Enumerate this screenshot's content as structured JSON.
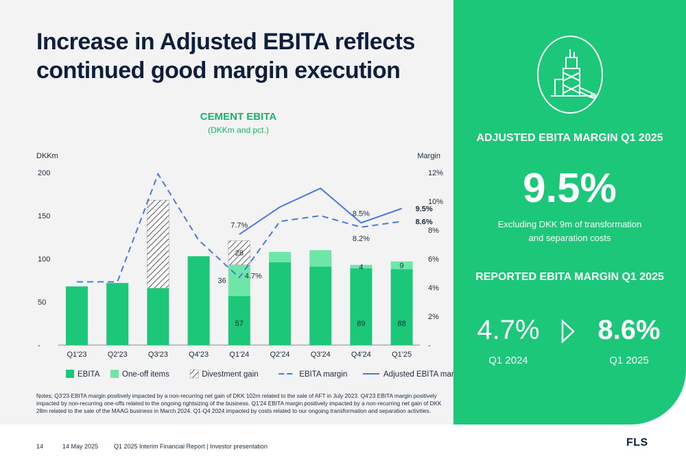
{
  "slide": {
    "title_line1": "Increase in Adjusted EBITA reflects",
    "title_line2": "continued good margin execution"
  },
  "chart_data": {
    "type": "bar",
    "title": "CEMENT EBITA",
    "subtitle": "(DKKm and pct.)",
    "ylabel": "DKKm",
    "y2label": "Margin",
    "ylim": [
      0,
      200
    ],
    "y2lim": [
      0,
      12
    ],
    "yticks": [
      "-",
      "50",
      "100",
      "150",
      "200"
    ],
    "y2ticks": [
      "-",
      "2%",
      "4%",
      "6%",
      "8%",
      "10%",
      "12%"
    ],
    "categories": [
      "Q1'23",
      "Q2'23",
      "Q3'23",
      "Q4'23",
      "Q1'24",
      "Q2'24",
      "Q3'24",
      "Q4'24",
      "Q1'25"
    ],
    "series": [
      {
        "name": "EBITA",
        "kind": "bar",
        "color": "#1dc77a",
        "values": [
          68,
          72,
          66,
          103,
          57,
          96,
          91,
          89,
          88
        ]
      },
      {
        "name": "One-off items",
        "kind": "bar",
        "color": "#6ee6a8",
        "values": [
          0,
          0,
          0,
          0,
          36,
          12,
          19,
          4,
          9
        ]
      },
      {
        "name": "Divestment gain",
        "kind": "bar",
        "pattern": "hatch",
        "values": [
          0,
          0,
          102,
          0,
          28,
          0,
          0,
          0,
          0
        ]
      },
      {
        "name": "EBITA margin",
        "kind": "line",
        "style": "dashed",
        "color": "#4a78e0",
        "values": [
          4.4,
          4.4,
          11.9,
          7.3,
          4.7,
          8.6,
          9.0,
          8.2,
          8.6
        ]
      },
      {
        "name": "Adjusted EBITA margin",
        "kind": "line",
        "style": "solid",
        "color": "#4a78e0",
        "values": [
          null,
          null,
          null,
          null,
          7.7,
          9.6,
          10.9,
          8.5,
          9.5
        ]
      }
    ],
    "bar_labels": [
      {
        "index": 4,
        "series": "EBITA",
        "text": "57"
      },
      {
        "index": 4,
        "series": "One-off items",
        "text": "36"
      },
      {
        "index": 4,
        "series": "Divestment gain",
        "text": "28"
      },
      {
        "index": 7,
        "series": "EBITA",
        "text": "89"
      },
      {
        "index": 7,
        "series": "One-off items",
        "text": "4"
      },
      {
        "index": 8,
        "series": "EBITA",
        "text": "88"
      },
      {
        "index": 8,
        "series": "One-off items",
        "text": "9"
      }
    ],
    "line_labels": [
      {
        "index": 4,
        "series": "Adjusted EBITA margin",
        "text": "7.7%",
        "pos": "above",
        "bold": false
      },
      {
        "index": 4,
        "series": "EBITA margin",
        "text": "4.7%",
        "pos": "right",
        "bold": false
      },
      {
        "index": 7,
        "series": "Adjusted EBITA margin",
        "text": "8.5%",
        "pos": "above",
        "bold": false
      },
      {
        "index": 7,
        "series": "EBITA margin",
        "text": "8.2%",
        "pos": "below",
        "bold": false
      },
      {
        "index": 8,
        "series": "Adjusted EBITA margin",
        "text": "9.5%",
        "pos": "right",
        "bold": true
      },
      {
        "index": 8,
        "series": "EBITA margin",
        "text": "8.6%",
        "pos": "right",
        "bold": true
      }
    ],
    "legend": [
      "EBITA",
      "One-off items",
      "Divestment gain",
      "EBITA margin",
      "Adjusted EBITA margin"
    ],
    "legend_position": "bottom",
    "grid": false
  },
  "notes": "Notes: Q3'23 EBITA margin positively impacted by a non-recurring net gain of DKK 102m related to the sale of AFT in July 2023. Q4'23 EBITA margin positively impacted by non-recurring one-offs related to the ongoing rightsizing of the business. Q1'24 EBITA margin positively impacted by a non-recurring net gain of DKK 28m related to the sale of the MAAG business in March 2024. Q1-Q4 2024 impacted by costs related to our ongoing transformation and separation activities.",
  "kpi": {
    "icon": "cement-plant-icon",
    "adjusted_heading": "ADJUSTED EBITA MARGIN Q1 2025",
    "adjusted_value": "9.5%",
    "adjusted_desc_line1": "Excluding DKK 9m of transformation",
    "adjusted_desc_line2": "and separation costs",
    "reported_heading": "REPORTED EBITA MARGIN Q1 2025",
    "reported_prev_value": "4.7%",
    "reported_prev_label": "Q1 2024",
    "reported_curr_value": "8.6%",
    "reported_curr_label": "Q1 2025"
  },
  "footer": {
    "page": "14",
    "date": "14 May 2025",
    "doc": "Q1 2025 Interim Financial Report | Investor presentation",
    "logo": "FLS"
  },
  "colors": {
    "accent_green": "#1dc77a",
    "light_green": "#6ee6a8",
    "navy": "#0d1f3c",
    "line_blue": "#4a78e0"
  }
}
